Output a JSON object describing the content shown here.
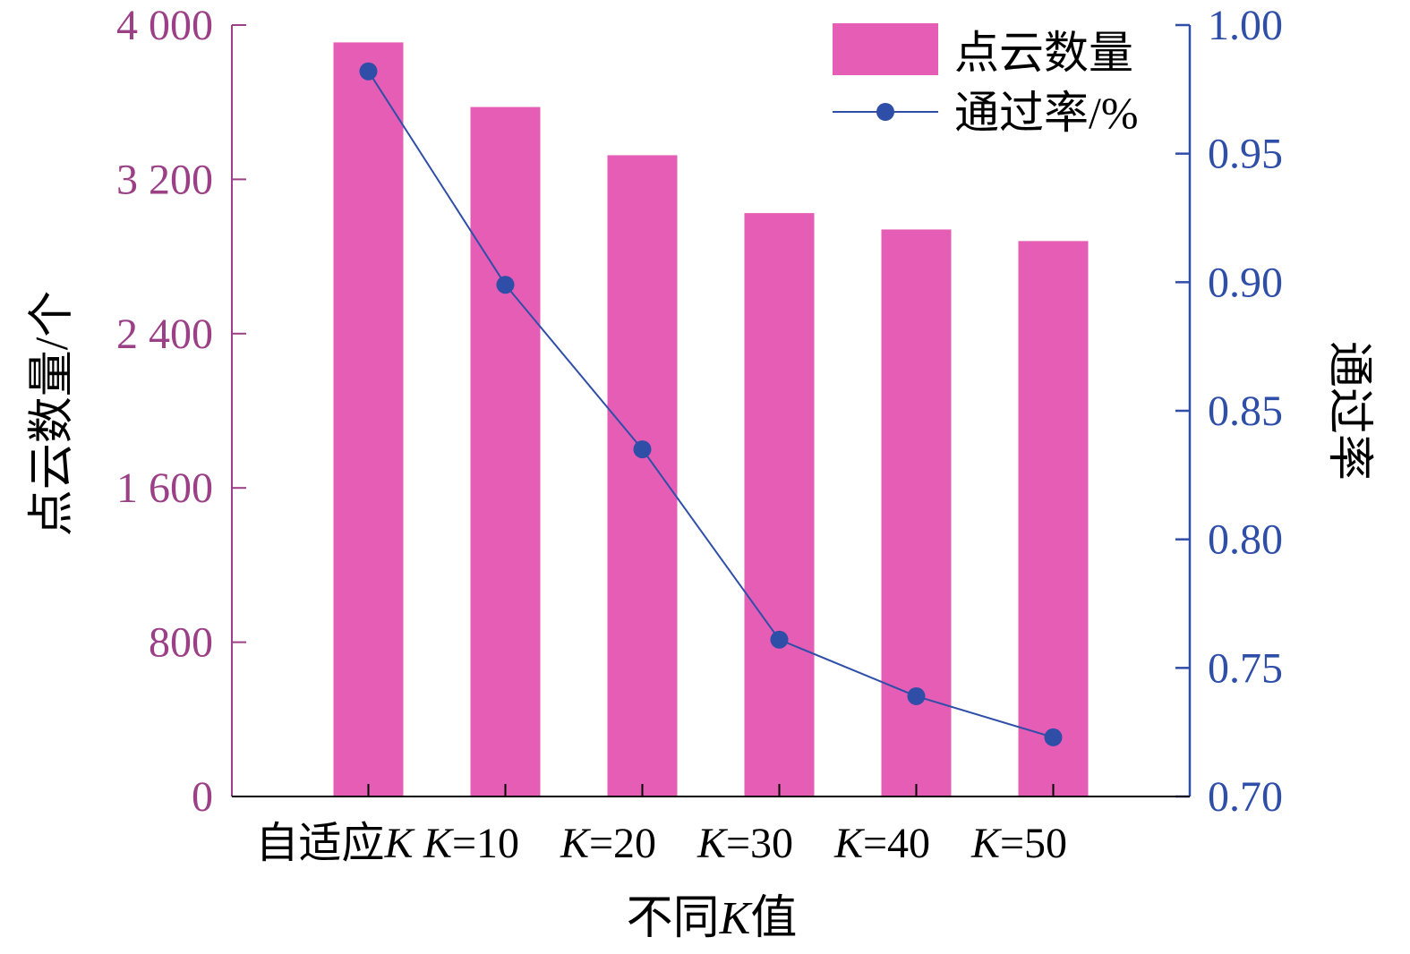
{
  "chart_data": {
    "type": "bar",
    "categories": [
      "自适应K",
      "K=10",
      "K=20",
      "K=30",
      "K=40",
      "K=50"
    ],
    "category_labels": [
      {
        "prefix": "自适应",
        "k": "K",
        "suffix": ""
      },
      {
        "prefix": "",
        "k": "K",
        "suffix": "=10"
      },
      {
        "prefix": "",
        "k": "K",
        "suffix": "=20"
      },
      {
        "prefix": "",
        "k": "K",
        "suffix": "=30"
      },
      {
        "prefix": "",
        "k": "K",
        "suffix": "=40"
      },
      {
        "prefix": "",
        "k": "K",
        "suffix": "=50"
      }
    ],
    "series": [
      {
        "name": "点云数量",
        "kind": "bar",
        "axis": "left",
        "color": "#E55DB5",
        "values": [
          3910,
          3575,
          3325,
          3025,
          2940,
          2880
        ]
      },
      {
        "name": "通过率/%",
        "kind": "line",
        "axis": "right",
        "color": "#2F4EA8",
        "values": [
          0.982,
          0.899,
          0.835,
          0.761,
          0.739,
          0.723
        ]
      }
    ],
    "xlabel": {
      "prefix": "不同",
      "k": "K",
      "suffix": "值"
    },
    "ylabel_left": "点云数量/个",
    "ylabel_right": "通过率",
    "ylim_left": [
      0,
      4000
    ],
    "ylim_right": [
      0.7,
      1.0
    ],
    "left_ticks": [
      {
        "value": 0,
        "label": "0"
      },
      {
        "value": 800,
        "label": "800"
      },
      {
        "value": 1600,
        "label": "1 600"
      },
      {
        "value": 2400,
        "label": "2 400"
      },
      {
        "value": 3200,
        "label": "3 200"
      },
      {
        "value": 4000,
        "label": "4 000"
      }
    ],
    "right_ticks": [
      {
        "value": 0.7,
        "label": "0.70"
      },
      {
        "value": 0.75,
        "label": "0.75"
      },
      {
        "value": 0.8,
        "label": "0.80"
      },
      {
        "value": 0.85,
        "label": "0.85"
      },
      {
        "value": 0.9,
        "label": "0.90"
      },
      {
        "value": 0.95,
        "label": "0.95"
      },
      {
        "value": 1.0,
        "label": "1.00"
      }
    ],
    "left_axis_color": "#9B3F86",
    "right_axis_color": "#2F4EA8",
    "legend_position": "top-right",
    "grid": false
  }
}
